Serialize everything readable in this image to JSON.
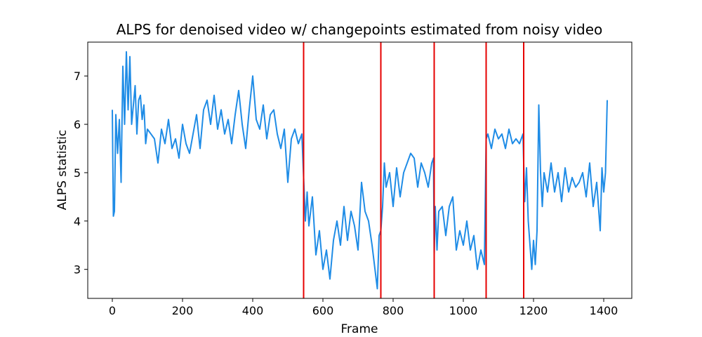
{
  "chart_data": {
    "type": "line",
    "title": "ALPS for denoised video w/ changepoints estimated from noisy video",
    "xlabel": "Frame",
    "ylabel": "ALPS statistic",
    "xlim": [
      -70,
      1480
    ],
    "ylim": [
      2.4,
      7.7
    ],
    "x_ticks": [
      0,
      200,
      400,
      600,
      800,
      1000,
      1200,
      1400
    ],
    "y_ticks": [
      3,
      4,
      5,
      6,
      7
    ],
    "grid": false,
    "colors": {
      "series": "#1f8ce6",
      "changepoint": "#e60000"
    },
    "changepoints": [
      545,
      765,
      917,
      1065,
      1172
    ],
    "series": [
      {
        "x": [
          0,
          3,
          6,
          10,
          15,
          20,
          25,
          30,
          35,
          40,
          45,
          50,
          55,
          60,
          65,
          70,
          75,
          80,
          85,
          90,
          95,
          100,
          110,
          120,
          130,
          140,
          150,
          160,
          170,
          180,
          190,
          200,
          210,
          220,
          230,
          240,
          250,
          260,
          270,
          280,
          290,
          300,
          310,
          320,
          330,
          340,
          350,
          360,
          370,
          380,
          390,
          400,
          410,
          420,
          430,
          440,
          450,
          460,
          470,
          480,
          490,
          500,
          510,
          520,
          530,
          540,
          545,
          550,
          555,
          560,
          570,
          580,
          590,
          600,
          610,
          620,
          630,
          640,
          650,
          660,
          670,
          680,
          690,
          700,
          710,
          720,
          730,
          740,
          750,
          755,
          760,
          765,
          770,
          775,
          780,
          790,
          800,
          810,
          820,
          830,
          840,
          850,
          860,
          870,
          880,
          890,
          900,
          910,
          915,
          917,
          920,
          925,
          930,
          940,
          950,
          960,
          970,
          980,
          990,
          1000,
          1010,
          1020,
          1030,
          1040,
          1050,
          1060,
          1065,
          1070,
          1080,
          1090,
          1100,
          1110,
          1120,
          1130,
          1140,
          1150,
          1160,
          1170,
          1172,
          1175,
          1180,
          1185,
          1190,
          1195,
          1200,
          1205,
          1210,
          1215,
          1220,
          1225,
          1230,
          1240,
          1250,
          1260,
          1270,
          1280,
          1290,
          1300,
          1310,
          1320,
          1330,
          1340,
          1350,
          1360,
          1370,
          1380,
          1390,
          1395,
          1400,
          1405,
          1410
        ],
        "values": [
          6.3,
          4.1,
          4.2,
          6.2,
          5.4,
          6.1,
          4.8,
          7.2,
          6.0,
          7.5,
          6.3,
          7.4,
          6.0,
          6.4,
          6.8,
          5.8,
          6.5,
          6.6,
          6.1,
          6.4,
          5.6,
          5.9,
          5.8,
          5.7,
          5.2,
          5.9,
          5.6,
          6.1,
          5.5,
          5.7,
          5.3,
          6.0,
          5.6,
          5.4,
          5.8,
          6.2,
          5.5,
          6.3,
          6.5,
          6.0,
          6.6,
          5.9,
          6.3,
          5.8,
          6.1,
          5.6,
          6.2,
          6.7,
          6.0,
          5.5,
          6.3,
          7.0,
          6.1,
          5.9,
          6.4,
          5.7,
          6.2,
          6.3,
          5.8,
          5.5,
          5.9,
          4.8,
          5.7,
          5.9,
          5.6,
          5.8,
          4.9,
          4.0,
          4.6,
          3.9,
          4.5,
          3.3,
          3.8,
          3.0,
          3.4,
          2.8,
          3.6,
          4.0,
          3.5,
          4.3,
          3.6,
          4.2,
          3.9,
          3.4,
          4.8,
          4.2,
          4.0,
          3.5,
          2.9,
          2.6,
          3.7,
          3.8,
          4.3,
          5.2,
          4.7,
          5.0,
          4.3,
          5.1,
          4.5,
          5.0,
          5.2,
          5.4,
          5.3,
          4.7,
          5.2,
          5.0,
          4.7,
          5.2,
          5.3,
          3.3,
          4.3,
          3.4,
          4.2,
          4.3,
          3.7,
          4.3,
          4.5,
          3.4,
          3.8,
          3.5,
          4.0,
          3.4,
          3.7,
          3.0,
          3.4,
          3.1,
          5.7,
          5.8,
          5.5,
          5.9,
          5.7,
          5.8,
          5.5,
          5.9,
          5.6,
          5.7,
          5.6,
          5.8,
          5.2,
          4.4,
          5.1,
          4.0,
          3.5,
          3.0,
          3.6,
          3.1,
          3.8,
          6.4,
          5.0,
          4.3,
          5.0,
          4.6,
          5.2,
          4.6,
          5.0,
          4.4,
          5.1,
          4.6,
          4.9,
          4.7,
          4.8,
          5.0,
          4.5,
          5.2,
          4.3,
          4.8,
          3.8,
          5.1,
          4.6,
          5.0,
          6.5
        ]
      }
    ]
  }
}
